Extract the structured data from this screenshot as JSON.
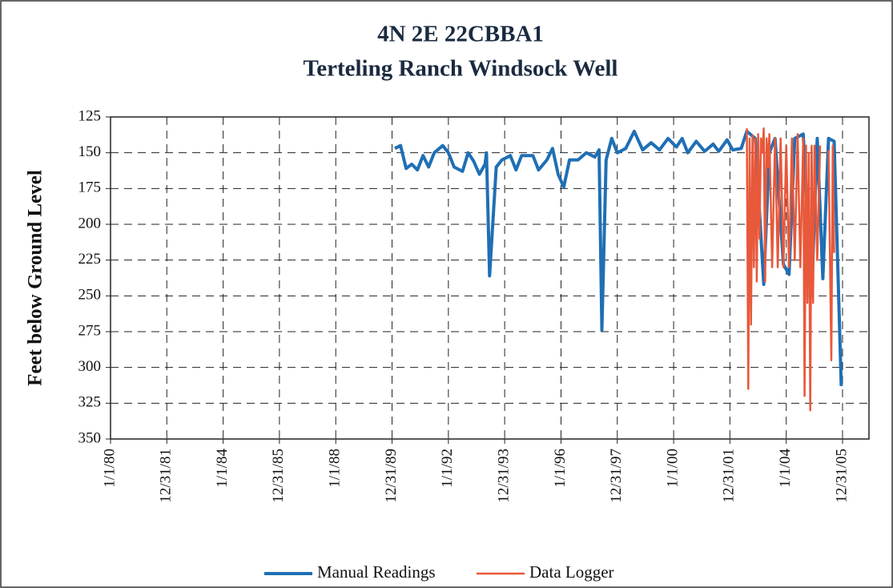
{
  "chart_data": {
    "type": "line",
    "title": "4N 2E 22CBBA1",
    "subtitle": "Terteling Ranch Windsock Well",
    "y_label": "Feet below Ground Level",
    "ylim": [
      125,
      350
    ],
    "y_inverted": true,
    "yticks": [
      125,
      150,
      175,
      200,
      225,
      250,
      275,
      300,
      325,
      350
    ],
    "xlim": [
      "1980-01-01",
      "2006-12-09"
    ],
    "xticks": [
      {
        "value": "1980-01-01",
        "label": "1/1/80"
      },
      {
        "value": "1981-12-31",
        "label": "12/31/81"
      },
      {
        "value": "1984-01-01",
        "label": "1/1/84"
      },
      {
        "value": "1985-12-31",
        "label": "12/31/85"
      },
      {
        "value": "1988-01-01",
        "label": "1/1/88"
      },
      {
        "value": "1989-12-31",
        "label": "12/31/89"
      },
      {
        "value": "1992-01-01",
        "label": "1/1/92"
      },
      {
        "value": "1993-12-31",
        "label": "12/31/93"
      },
      {
        "value": "1996-01-01",
        "label": "1/1/96"
      },
      {
        "value": "1997-12-31",
        "label": "12/31/97"
      },
      {
        "value": "2000-01-01",
        "label": "1/1/00"
      },
      {
        "value": "2001-12-31",
        "label": "12/31/01"
      },
      {
        "value": "2004-01-01",
        "label": "1/1/04"
      },
      {
        "value": "2005-12-31",
        "label": "12/31/05"
      }
    ],
    "grid": true,
    "legend": "bottom",
    "series": [
      {
        "name": "Manual Readings",
        "color": "#1f6fb5",
        "x": [
          "1990-02-06",
          "1990-04-20",
          "1990-07-02",
          "1990-09-13",
          "1990-11-25",
          "1991-02-06",
          "1991-04-20",
          "1991-07-02",
          "1991-10-20",
          "1992-01-01",
          "1992-03-15",
          "1992-07-02",
          "1992-09-13",
          "1992-11-25",
          "1993-02-06",
          "1993-04-20",
          "1993-05-09",
          "1993-06-18",
          "1993-09-13",
          "1993-11-25",
          "1994-03-15",
          "1994-05-27",
          "1994-08-08",
          "1995-01-01",
          "1995-03-15",
          "1995-07-02",
          "1995-09-13",
          "1995-11-25",
          "1996-02-06",
          "1996-04-20",
          "1996-08-08",
          "1996-11-25",
          "1997-03-15",
          "1997-05-09",
          "1997-06-14",
          "1997-08-08",
          "1997-10-20",
          "1998-01-01",
          "1998-04-20",
          "1998-08-08",
          "1998-11-25",
          "1999-03-15",
          "1999-07-02",
          "1999-10-20",
          "2000-02-06",
          "2000-04-20",
          "2000-07-02",
          "2000-10-20",
          "2001-02-06",
          "2001-05-27",
          "2001-08-08",
          "2001-11-25",
          "2002-02-06",
          "2002-05-27",
          "2002-08-08",
          "2002-11-25",
          "2003-03-15",
          "2003-05-27",
          "2003-08-08",
          "2003-11-25",
          "2004-02-06",
          "2004-04-20",
          "2004-08-08",
          "2004-11-25",
          "2005-02-06",
          "2005-04-20",
          "2005-07-02",
          "2005-09-13",
          "2005-12-14"
        ],
        "values": [
          147,
          145,
          161,
          158,
          162,
          152,
          160,
          150,
          145,
          150,
          160,
          163,
          150,
          156,
          165,
          158,
          150,
          236,
          160,
          155,
          152,
          162,
          152,
          152,
          162,
          155,
          147,
          165,
          174,
          155,
          155,
          150,
          153,
          148,
          274,
          155,
          140,
          150,
          147,
          135,
          148,
          143,
          148,
          140,
          146,
          140,
          150,
          142,
          149,
          144,
          149,
          141,
          148,
          147,
          135,
          140,
          242,
          150,
          140,
          228,
          235,
          140,
          137,
          250,
          140,
          238,
          140,
          142,
          313
        ]
      },
      {
        "name": "Data Logger",
        "color": "#e8583a",
        "x": [
          "2002-08-08",
          "2002-08-26",
          "2002-09-13",
          "2002-10-01",
          "2002-10-20",
          "2002-11-07",
          "2002-11-25",
          "2002-12-14",
          "2003-01-01",
          "2003-01-19",
          "2003-02-06",
          "2003-02-25",
          "2003-03-15",
          "2003-04-02",
          "2003-04-20",
          "2003-05-09",
          "2003-05-27",
          "2003-07-02",
          "2003-08-08",
          "2003-09-13",
          "2003-10-20",
          "2003-11-25",
          "2004-01-01",
          "2004-02-06",
          "2004-03-15",
          "2004-04-20",
          "2004-05-27",
          "2004-07-02",
          "2004-08-08",
          "2004-08-26",
          "2004-09-13",
          "2004-10-01",
          "2004-10-20",
          "2004-11-07",
          "2004-11-25",
          "2004-12-14",
          "2005-01-01",
          "2005-02-06",
          "2005-03-15",
          "2005-05-01",
          "2005-07-02",
          "2005-08-08",
          "2005-08-26",
          "2005-09-13"
        ],
        "values": [
          133,
          315,
          140,
          270,
          138,
          230,
          140,
          240,
          137,
          210,
          140,
          150,
          133,
          240,
          140,
          160,
          137,
          230,
          140,
          230,
          140,
          230,
          145,
          230,
          140,
          225,
          137,
          230,
          140,
          320,
          145,
          255,
          150,
          330,
          145,
          255,
          145,
          225,
          145,
          null,
          148,
          295,
          145,
          220
        ]
      }
    ]
  }
}
